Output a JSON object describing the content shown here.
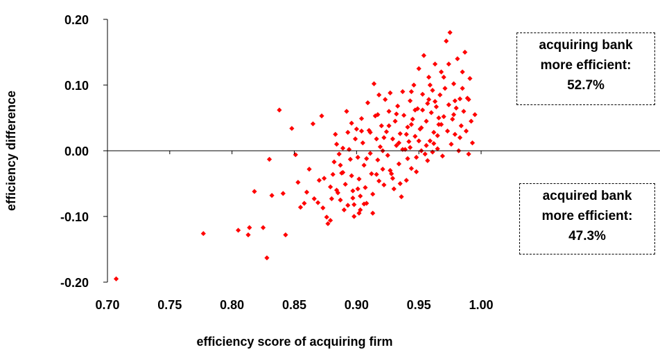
{
  "chart_data": {
    "type": "scatter",
    "title": "",
    "xlabel": "efficiency score of acquiring firm",
    "ylabel": "efficiency difference",
    "xlim": [
      0.7,
      1.0
    ],
    "ylim": [
      -0.2,
      0.2
    ],
    "x_ticks": [
      "0.70",
      "0.75",
      "0.80",
      "0.85",
      "0.90",
      "0.95",
      "1.00"
    ],
    "y_ticks": [
      "0.20",
      "0.10",
      "0.00",
      "-0.10",
      "-0.20"
    ],
    "grid": false,
    "marker_color": "#ff0000",
    "annotations": [
      {
        "lines": [
          "acquiring bank",
          "more efficient:",
          "52.7%"
        ]
      },
      {
        "lines": [
          "acquired bank",
          "more efficient:",
          "47.3%"
        ]
      }
    ],
    "points": [
      [
        0.707,
        -0.195
      ],
      [
        0.777,
        -0.126
      ],
      [
        0.805,
        -0.121
      ],
      [
        0.813,
        -0.128
      ],
      [
        0.814,
        -0.117
      ],
      [
        0.818,
        -0.062
      ],
      [
        0.825,
        -0.117
      ],
      [
        0.828,
        -0.163
      ],
      [
        0.83,
        -0.013
      ],
      [
        0.832,
        -0.068
      ],
      [
        0.838,
        0.062
      ],
      [
        0.841,
        -0.065
      ],
      [
        0.843,
        -0.128
      ],
      [
        0.848,
        0.034
      ],
      [
        0.851,
        -0.006
      ],
      [
        0.853,
        -0.048
      ],
      [
        0.855,
        -0.086
      ],
      [
        0.858,
        -0.08
      ],
      [
        0.86,
        -0.063
      ],
      [
        0.862,
        -0.028
      ],
      [
        0.865,
        0.041
      ],
      [
        0.866,
        -0.073
      ],
      [
        0.869,
        -0.079
      ],
      [
        0.872,
        0.053
      ],
      [
        0.873,
        -0.087
      ],
      [
        0.874,
        -0.042
      ],
      [
        0.876,
        -0.101
      ],
      [
        0.877,
        -0.111
      ],
      [
        0.879,
        -0.106
      ],
      [
        0.88,
        -0.073
      ],
      [
        0.881,
        -0.036
      ],
      [
        0.882,
        -0.017
      ],
      [
        0.883,
        0.025
      ],
      [
        0.884,
        0.01
      ],
      [
        0.885,
        -0.064
      ],
      [
        0.886,
        -0.005
      ],
      [
        0.887,
        -0.075
      ],
      [
        0.888,
        -0.034
      ],
      [
        0.889,
        0.004
      ],
      [
        0.89,
        -0.09
      ],
      [
        0.891,
        -0.051
      ],
      [
        0.892,
        0.06
      ],
      [
        0.893,
        0.028
      ],
      [
        0.894,
        0.002
      ],
      [
        0.895,
        -0.013
      ],
      [
        0.896,
        -0.038
      ],
      [
        0.897,
        -0.061
      ],
      [
        0.898,
        -0.082
      ],
      [
        0.898,
        -0.1
      ],
      [
        0.899,
        0.018
      ],
      [
        0.9,
        0.033
      ],
      [
        0.901,
        -0.01
      ],
      [
        0.902,
        -0.043
      ],
      [
        0.903,
        -0.069
      ],
      [
        0.903,
        -0.09
      ],
      [
        0.904,
        0.049
      ],
      [
        0.905,
        0.012
      ],
      [
        0.906,
        -0.022
      ],
      [
        0.907,
        -0.056
      ],
      [
        0.908,
        -0.08
      ],
      [
        0.909,
        0.073
      ],
      [
        0.91,
        0.031
      ],
      [
        0.911,
        -0.004
      ],
      [
        0.912,
        -0.035
      ],
      [
        0.913,
        -0.066
      ],
      [
        0.914,
        0.102
      ],
      [
        0.915,
        0.053
      ],
      [
        0.916,
        0.018
      ],
      [
        0.917,
        -0.014
      ],
      [
        0.918,
        -0.046
      ],
      [
        0.919,
        0.006
      ],
      [
        0.92,
        0.038
      ],
      [
        0.921,
        -0.028
      ],
      [
        0.922,
        -0.052
      ],
      [
        0.923,
        0.078
      ],
      [
        0.924,
        0.029
      ],
      [
        0.925,
        -0.007
      ],
      [
        0.926,
        0.06
      ],
      [
        0.927,
        0.088
      ],
      [
        0.928,
        -0.035
      ],
      [
        0.929,
        0.018
      ],
      [
        0.93,
        -0.058
      ],
      [
        0.931,
        0.045
      ],
      [
        0.932,
        0.008
      ],
      [
        0.933,
        0.068
      ],
      [
        0.934,
        -0.02
      ],
      [
        0.935,
        0.026
      ],
      [
        0.936,
        -0.07
      ],
      [
        0.937,
        0.09
      ],
      [
        0.938,
        0.054
      ],
      [
        0.939,
        0.002
      ],
      [
        0.94,
        -0.045
      ],
      [
        0.941,
        0.036
      ],
      [
        0.942,
        0.014
      ],
      [
        0.943,
        0.076
      ],
      [
        0.944,
        -0.027
      ],
      [
        0.945,
        0.048
      ],
      [
        0.946,
        0.1
      ],
      [
        0.947,
        0.022
      ],
      [
        0.948,
        -0.01
      ],
      [
        0.949,
        0.064
      ],
      [
        0.95,
        0.125
      ],
      [
        0.951,
        0.033
      ],
      [
        0.952,
        0.0
      ],
      [
        0.953,
        0.086
      ],
      [
        0.954,
        0.145
      ],
      [
        0.955,
        -0.005
      ],
      [
        0.956,
        0.045
      ],
      [
        0.957,
        0.072
      ],
      [
        0.958,
        0.112
      ],
      [
        0.959,
        0.015
      ],
      [
        0.96,
        0.058
      ],
      [
        0.961,
        0.092
      ],
      [
        0.962,
        0.028
      ],
      [
        0.963,
        0.132
      ],
      [
        0.964,
        0.067
      ],
      [
        0.965,
        0.003
      ],
      [
        0.966,
        0.04
      ],
      [
        0.967,
        0.085
      ],
      [
        0.968,
        0.12
      ],
      [
        0.969,
        -0.008
      ],
      [
        0.97,
        0.052
      ],
      [
        0.971,
        0.095
      ],
      [
        0.972,
        0.167
      ],
      [
        0.973,
        0.03
      ],
      [
        0.974,
        0.07
      ],
      [
        0.975,
        0.18
      ],
      [
        0.976,
        0.01
      ],
      [
        0.977,
        0.048
      ],
      [
        0.978,
        0.102
      ],
      [
        0.979,
        0.025
      ],
      [
        0.98,
        0.065
      ],
      [
        0.981,
        0.14
      ],
      [
        0.982,
        0.0
      ],
      [
        0.983,
        0.079
      ],
      [
        0.984,
        0.038
      ],
      [
        0.985,
        0.12
      ],
      [
        0.986,
        0.06
      ],
      [
        0.987,
        0.15
      ],
      [
        0.988,
        0.03
      ],
      [
        0.989,
        0.08
      ],
      [
        0.99,
        -0.005
      ],
      [
        0.991,
        0.11
      ],
      [
        0.992,
        0.045
      ],
      [
        0.993,
        0.012
      ],
      [
        0.995,
        0.055
      ],
      [
        0.896,
        0.042
      ],
      [
        0.918,
        0.085
      ],
      [
        0.932,
        0.056
      ],
      [
        0.944,
        0.09
      ],
      [
        0.952,
        0.035
      ],
      [
        0.937,
        0.002
      ],
      [
        0.922,
        0.02
      ],
      [
        0.908,
        -0.012
      ],
      [
        0.927,
        -0.03
      ],
      [
        0.941,
        -0.012
      ],
      [
        0.956,
        0.008
      ],
      [
        0.962,
        0.011
      ],
      [
        0.947,
        0.062
      ],
      [
        0.959,
        0.1
      ],
      [
        0.97,
        0.112
      ],
      [
        0.965,
        0.023
      ],
      [
        0.958,
        0.078
      ],
      [
        0.974,
        0.132
      ],
      [
        0.935,
        -0.05
      ],
      [
        0.916,
        -0.036
      ],
      [
        0.901,
        -0.058
      ],
      [
        0.887,
        -0.022
      ],
      [
        0.879,
        -0.055
      ],
      [
        0.913,
        -0.095
      ],
      [
        0.906,
        -0.081
      ],
      [
        0.929,
        -0.042
      ],
      [
        0.921,
        0.0
      ],
      [
        0.94,
        0.025
      ],
      [
        0.948,
        -0.032
      ],
      [
        0.957,
        -0.015
      ],
      [
        0.966,
        0.05
      ],
      [
        0.978,
        0.055
      ],
      [
        0.985,
        0.095
      ],
      [
        0.983,
        0.02
      ],
      [
        0.963,
        0.075
      ],
      [
        0.953,
        0.062
      ],
      [
        0.944,
        0.04
      ],
      [
        0.934,
        0.012
      ],
      [
        0.926,
        0.038
      ],
      [
        0.917,
        0.055
      ],
      [
        0.911,
        0.028
      ],
      [
        0.904,
        0.03
      ],
      [
        0.897,
        -0.072
      ],
      [
        0.893,
        -0.083
      ],
      [
        0.902,
        -0.095
      ],
      [
        0.889,
        -0.033
      ],
      [
        0.884,
        -0.06
      ],
      [
        0.87,
        -0.045
      ],
      [
        0.95,
        0.015
      ],
      [
        0.943,
        0.005
      ],
      [
        0.961,
        -0.002
      ],
      [
        0.968,
        0.04
      ],
      [
        0.979,
        0.076
      ],
      [
        0.99,
        0.078
      ]
    ]
  }
}
